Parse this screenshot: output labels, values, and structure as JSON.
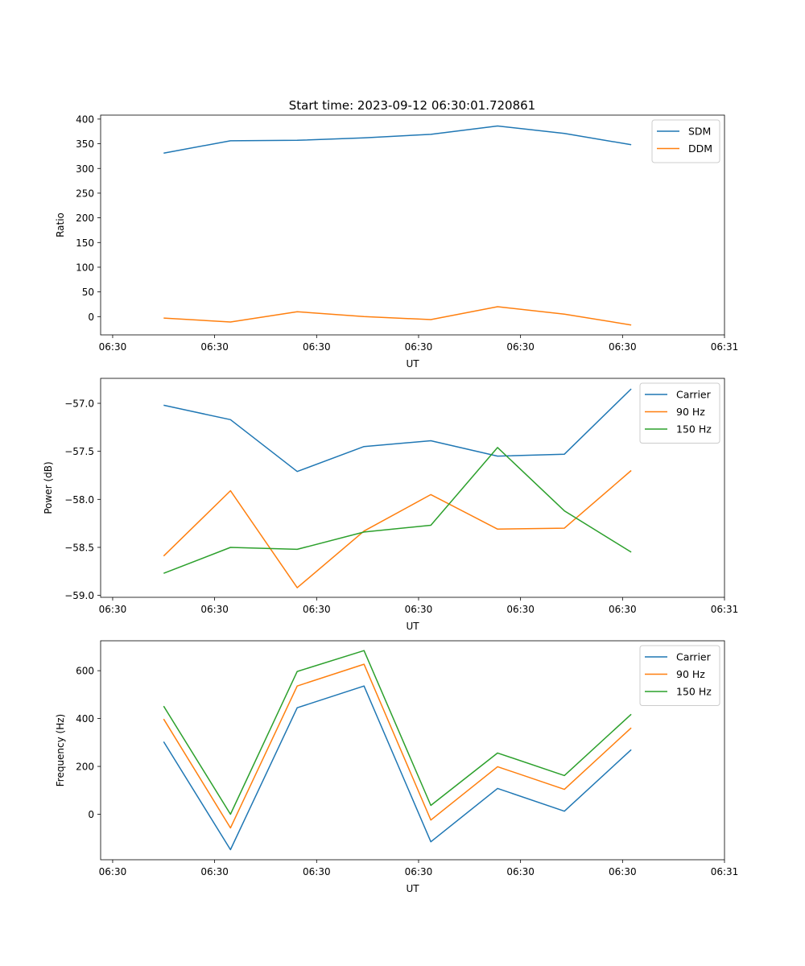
{
  "chart_data": [
    {
      "type": "line",
      "title": "Start time: 2023-09-12 06:30:01.720861",
      "xlabel": "UT",
      "ylabel": "Ratio",
      "x": [
        0.5,
        1.155,
        1.81,
        2.465,
        3.12,
        3.775,
        4.43,
        5.085
      ],
      "xlim": [
        -0.118,
        6.0
      ],
      "xticks": [
        0,
        1,
        2,
        3,
        4,
        5,
        6
      ],
      "xtick_labels": [
        "06:30",
        "06:30",
        "06:30",
        "06:30",
        "06:30",
        "06:30",
        "06:31"
      ],
      "ylim": [
        -37,
        408
      ],
      "yticks": [
        0,
        50,
        100,
        150,
        200,
        250,
        300,
        350,
        400
      ],
      "ytick_labels": [
        "0",
        "50",
        "100",
        "150",
        "200",
        "250",
        "300",
        "350",
        "400"
      ],
      "legend": "top-right",
      "series": [
        {
          "name": "SDM",
          "color": "#1f77b4",
          "values": [
            331,
            356,
            357,
            362,
            369,
            386,
            371,
            348
          ]
        },
        {
          "name": "DDM",
          "color": "#ff7f0e",
          "values": [
            -3,
            -11,
            10,
            0,
            -6,
            20,
            5,
            -17
          ]
        }
      ]
    },
    {
      "type": "line",
      "title": "",
      "xlabel": "UT",
      "ylabel": "Power (dB)",
      "x": [
        0.5,
        1.155,
        1.81,
        2.465,
        3.12,
        3.775,
        4.43,
        5.085
      ],
      "xlim": [
        -0.118,
        6.0
      ],
      "xticks": [
        0,
        1,
        2,
        3,
        4,
        5,
        6
      ],
      "xtick_labels": [
        "06:30",
        "06:30",
        "06:30",
        "06:30",
        "06:30",
        "06:30",
        "06:31"
      ],
      "ylim": [
        -59.02,
        -56.74
      ],
      "yticks": [
        -59.0,
        -58.5,
        -58.0,
        -57.5,
        -57.0
      ],
      "ytick_labels": [
        "−59.0",
        "−58.5",
        "−58.0",
        "−57.5",
        "−57.0"
      ],
      "legend": "top-right",
      "series": [
        {
          "name": "Carrier",
          "color": "#1f77b4",
          "values": [
            -57.02,
            -57.17,
            -57.71,
            -57.45,
            -57.39,
            -57.55,
            -57.53,
            -56.85
          ]
        },
        {
          "name": "90 Hz",
          "color": "#ff7f0e",
          "values": [
            -58.59,
            -57.91,
            -58.92,
            -58.33,
            -57.95,
            -58.31,
            -58.3,
            -57.7
          ]
        },
        {
          "name": "150 Hz",
          "color": "#2ca02c",
          "values": [
            -58.77,
            -58.5,
            -58.52,
            -58.34,
            -58.27,
            -57.46,
            -58.12,
            -58.55
          ]
        }
      ]
    },
    {
      "type": "line",
      "title": "",
      "xlabel": "UT",
      "ylabel": "Frequency (Hz)",
      "x": [
        0.5,
        1.155,
        1.81,
        2.465,
        3.12,
        3.775,
        4.43,
        5.085
      ],
      "xlim": [
        -0.118,
        6.0
      ],
      "xticks": [
        0,
        1,
        2,
        3,
        4,
        5,
        6
      ],
      "xtick_labels": [
        "06:30",
        "06:30",
        "06:30",
        "06:30",
        "06:30",
        "06:30",
        "06:31"
      ],
      "ylim": [
        -190,
        725
      ],
      "yticks": [
        0,
        200,
        400,
        600
      ],
      "ytick_labels": [
        "0",
        "200",
        "400",
        "600"
      ],
      "legend": "top-right",
      "series": [
        {
          "name": "Carrier",
          "color": "#1f77b4",
          "values": [
            303,
            -148,
            445,
            536,
            -115,
            108,
            13,
            270
          ]
        },
        {
          "name": "90 Hz",
          "color": "#ff7f0e",
          "values": [
            398,
            -57,
            536,
            627,
            -24,
            199,
            104,
            361
          ]
        },
        {
          "name": "150 Hz",
          "color": "#2ca02c",
          "values": [
            452,
            0,
            597,
            684,
            37,
            256,
            162,
            418
          ]
        }
      ]
    }
  ]
}
